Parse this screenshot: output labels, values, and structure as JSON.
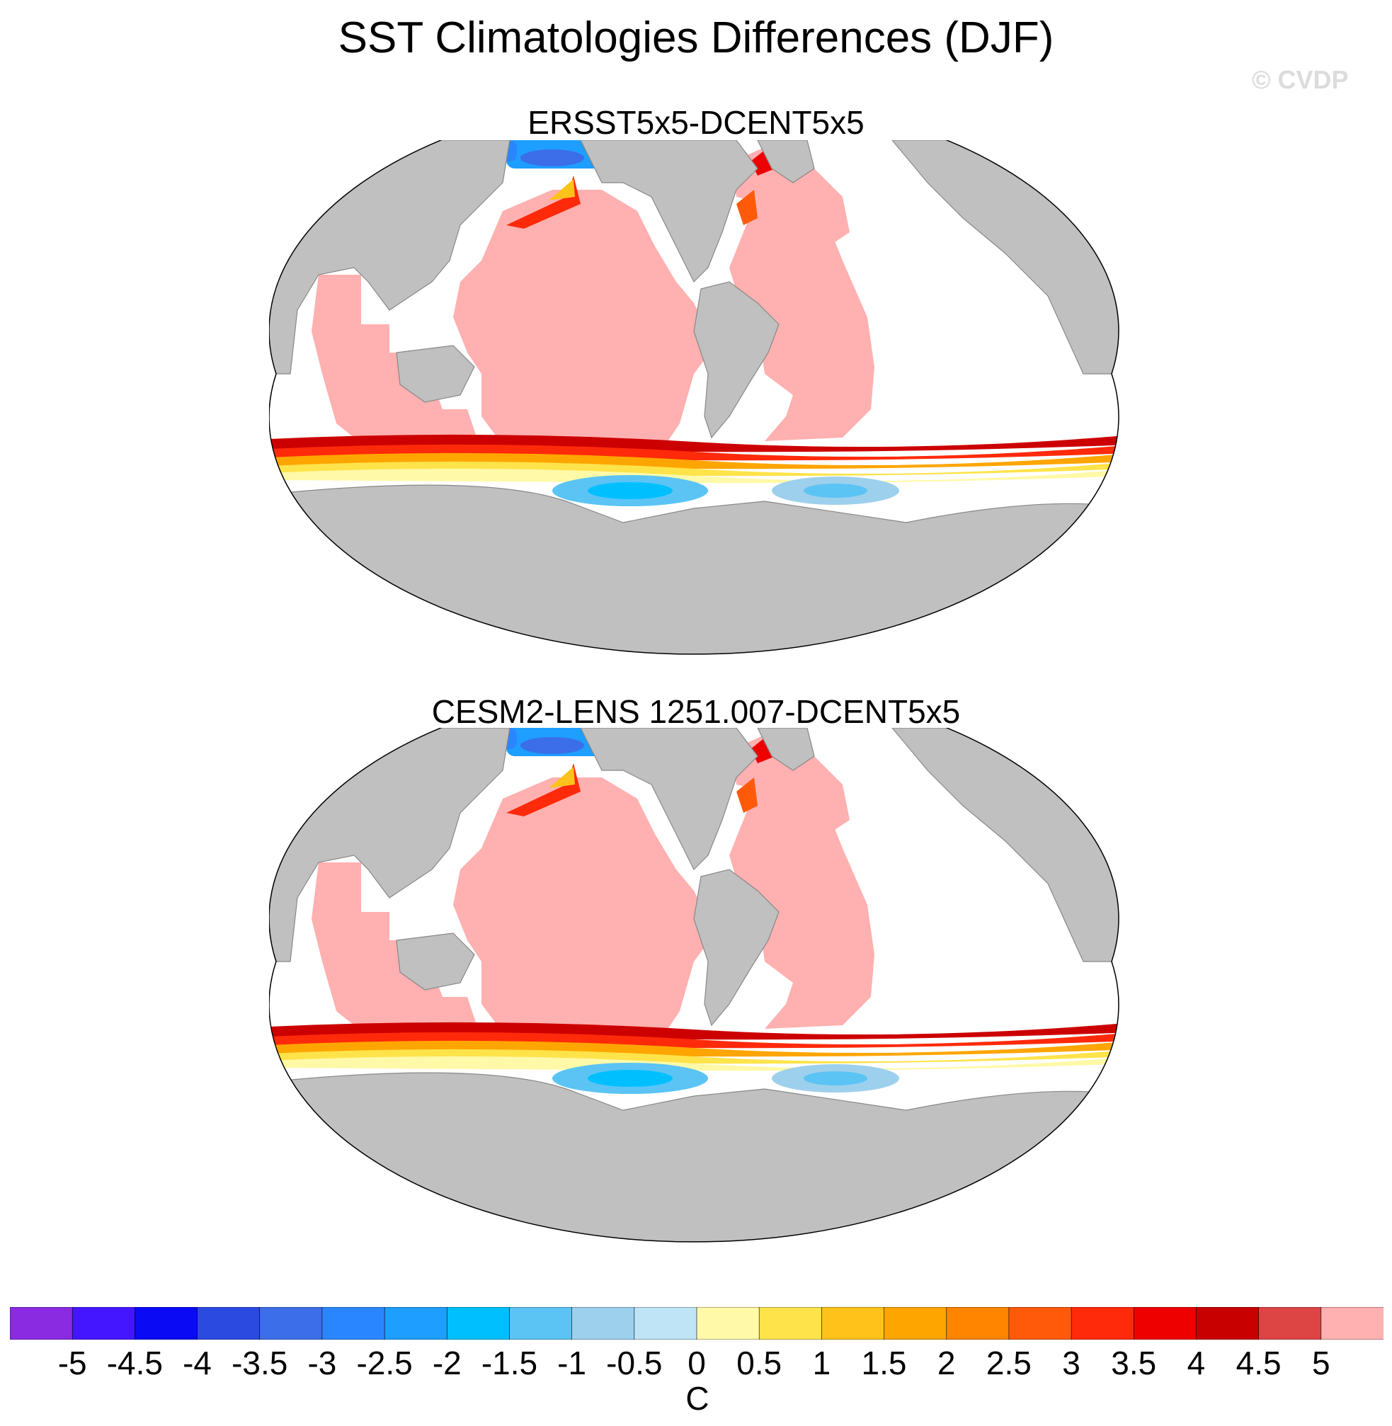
{
  "title": "SST Climatologies Differences (DJF)",
  "watermark": "© CVDP",
  "panels": [
    {
      "title": "ERSST5x5-DCENT5x5"
    },
    {
      "title": "CESM2-LENS 1251.007-DCENT5x5"
    }
  ],
  "colorbar": {
    "unit": "C",
    "tick_labels": [
      "-5",
      "-4.5",
      "-4",
      "-3.5",
      "-3",
      "-2.5",
      "-2",
      "-1.5",
      "-1",
      "-0.5",
      "0",
      "0.5",
      "1",
      "1.5",
      "2",
      "2.5",
      "3",
      "3.5",
      "4",
      "4.5",
      "5"
    ],
    "colors": [
      "#8a2be2",
      "#4416ff",
      "#0a0af5",
      "#2b4ae0",
      "#3b6ee8",
      "#2a86ff",
      "#1e9eff",
      "#00bfff",
      "#5bc4f4",
      "#9dd0ec",
      "#bfe4f6",
      "#fff9a8",
      "#ffe34a",
      "#ffc21a",
      "#ffa500",
      "#ff8400",
      "#ff5a0a",
      "#ff2a0a",
      "#ee0000",
      "#c80000",
      "#dd4444",
      "#ffb0b0"
    ]
  },
  "colors": {
    "land": "#c0c0c0",
    "ocean_above_5": "#ffb0b0",
    "missing": "#ffffff"
  }
}
